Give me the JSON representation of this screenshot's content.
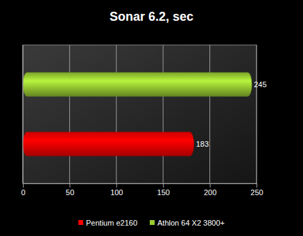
{
  "chart_data": {
    "type": "bar",
    "title": "Sonar 6.2, sec",
    "orientation": "horizontal",
    "categories": [
      null
    ],
    "series": [
      {
        "name": "Pentium e2160",
        "color": "#ff0000",
        "values": [
          183
        ]
      },
      {
        "name": "Athlon 64 X2 3800+",
        "color": "#99cc33",
        "values": [
          245
        ]
      }
    ],
    "xlim": [
      0,
      250
    ],
    "xticks": [
      0,
      50,
      100,
      150,
      200,
      250
    ],
    "grid": true,
    "data_labels": true,
    "legend": "bottom",
    "tick_labels": "x"
  }
}
